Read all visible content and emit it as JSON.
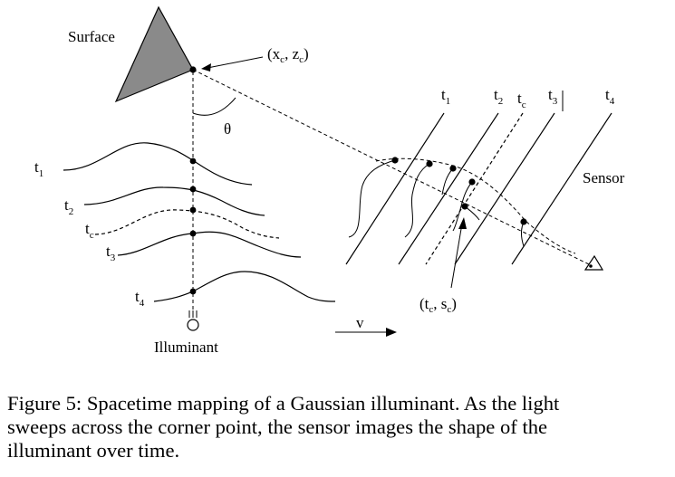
{
  "figure": {
    "labels": {
      "surface": "Surface",
      "corner_point": "(x",
      "corner_point_sub1": "c",
      "corner_point_mid": ", z",
      "corner_point_sub2": "c",
      "corner_point_end": ")",
      "theta": "θ",
      "sensor": "Sensor",
      "illuminant": "Illuminant",
      "velocity": "v",
      "sensor_point": "(t",
      "sensor_point_sub1": "c",
      "sensor_point_mid": ", s",
      "sensor_point_sub2": "c",
      "sensor_point_end": ")"
    },
    "time_labels_left": [
      {
        "base": "t",
        "sub": "1"
      },
      {
        "base": "t",
        "sub": "2"
      },
      {
        "base": "t",
        "sub": "c"
      },
      {
        "base": "t",
        "sub": "3"
      },
      {
        "base": "t",
        "sub": "4"
      }
    ],
    "time_labels_right": [
      {
        "base": "t",
        "sub": "1"
      },
      {
        "base": "t",
        "sub": "2"
      },
      {
        "base": "t",
        "sub": "c"
      },
      {
        "base": "t",
        "sub": "3"
      },
      {
        "base": "t",
        "sub": "4"
      }
    ]
  },
  "caption": {
    "line1": "Figure 5: Spacetime mapping of a Gaussian illuminant.  As the light",
    "line2": "sweeps across the corner point, the sensor images the shape of the",
    "line3": "illuminant over time."
  }
}
